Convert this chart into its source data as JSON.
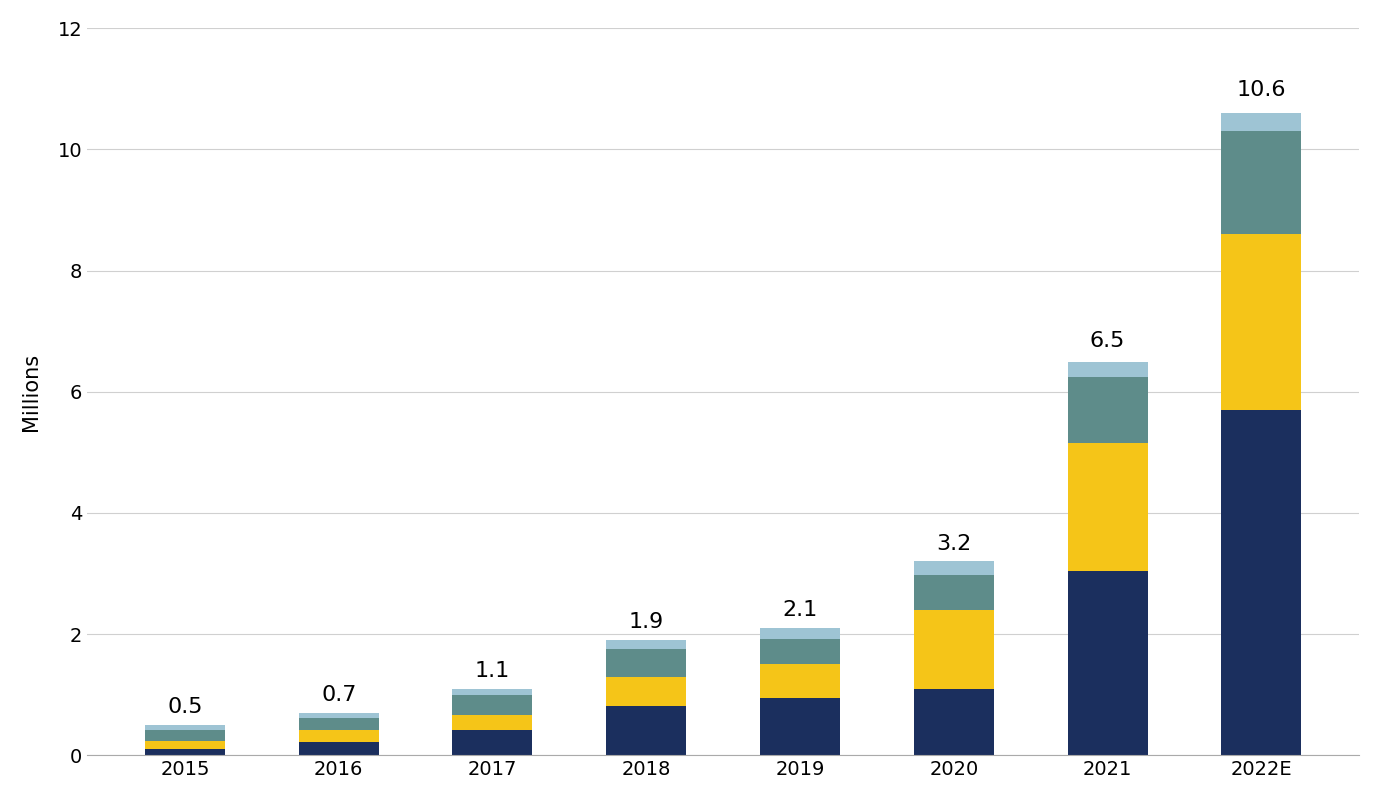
{
  "years": [
    "2015",
    "2016",
    "2017",
    "2018",
    "2019",
    "2020",
    "2021",
    "2022E"
  ],
  "totals": [
    0.5,
    0.7,
    1.1,
    1.9,
    2.1,
    3.2,
    6.5,
    10.6
  ],
  "segments": {
    "dark_navy": [
      0.1,
      0.22,
      0.42,
      0.82,
      0.95,
      1.1,
      3.05,
      5.7
    ],
    "yellow": [
      0.14,
      0.2,
      0.25,
      0.48,
      0.55,
      1.3,
      2.1,
      2.9
    ],
    "teal": [
      0.18,
      0.2,
      0.33,
      0.46,
      0.42,
      0.58,
      1.1,
      1.7
    ],
    "light_blue": [
      0.08,
      0.08,
      0.1,
      0.14,
      0.18,
      0.22,
      0.25,
      0.3
    ]
  },
  "colors": {
    "dark_navy": "#1b2f5e",
    "yellow": "#f5c518",
    "teal": "#5e8c8a",
    "light_blue": "#9ec4d4"
  },
  "ylabel": "Millions",
  "ylim": [
    0,
    12
  ],
  "yticks": [
    0,
    2,
    4,
    6,
    8,
    10,
    12
  ],
  "annotation_fontsize": 16,
  "axis_fontsize": 15,
  "tick_fontsize": 14,
  "bar_width": 0.52,
  "background_color": "#ffffff",
  "grid_color": "#d0d0d0",
  "annotation_offsets": [
    0.13,
    0.13,
    0.13,
    0.13,
    0.13,
    0.13,
    0.18,
    0.22
  ]
}
